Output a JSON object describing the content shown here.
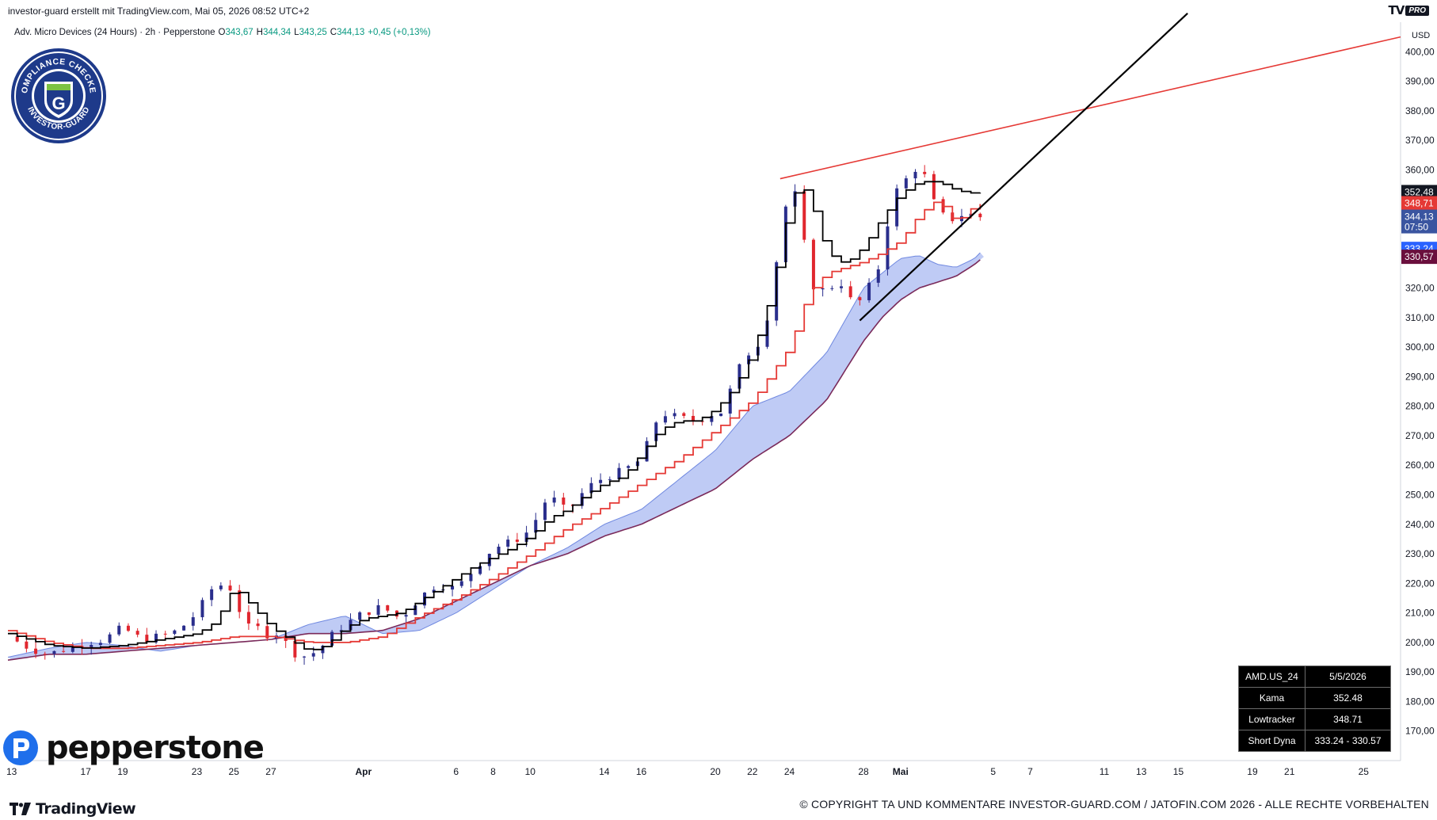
{
  "header": {
    "caption": "investor-guard erstellt mit TradingView.com, Mai 05, 2026 08:52 UTC+2",
    "pro_badge": "PRO"
  },
  "legend": {
    "symbol": "Adv. Micro Devices (24 Hours) · 2h · Pepperstone",
    "o_label": "O",
    "o": "343,67",
    "h_label": "H",
    "h": "344,34",
    "l_label": "L",
    "l": "343,25",
    "c_label": "C",
    "c": "344,13",
    "change": "+0,45 (+0,13%)"
  },
  "badge": {
    "top_text": "COMPLIANCE CHECKED",
    "bottom_text": "INVESTOR-GUARD",
    "letter": "G"
  },
  "stats": {
    "header_symbol": "AMD.US_24",
    "header_date": "5/5/2026",
    "rows": [
      {
        "label": "Kama",
        "value": "352.48"
      },
      {
        "label": "Lowtracker",
        "value": "348.71"
      },
      {
        "label": "Short Dyna",
        "value": "333.24 - 330.57"
      }
    ]
  },
  "footer": {
    "pepperstone": "pepperstone",
    "tradingview": "TradingView",
    "copyright": "© COPYRIGHT TA UND KOMMENTARE INVESTOR-GUARD.COM / JATOFIN.COM 2026 - ALLE RECHTE VORBEHALTEN"
  },
  "colors": {
    "up": "#2a2e8c",
    "down": "#e0262e",
    "kama": "#000000",
    "lowtracker": "#e53935",
    "cloud_fill": "#a9b9f2",
    "cloud_border": "#7a2a5a",
    "trend_red": "#e53935",
    "trend_black": "#000000"
  },
  "chart_data": {
    "type": "candlestick",
    "currency": "USD",
    "ylim": [
      160,
      410
    ],
    "y_ticks": [
      170,
      180,
      190,
      200,
      210,
      220,
      230,
      240,
      250,
      260,
      270,
      280,
      290,
      300,
      310,
      320,
      330,
      340,
      350,
      360,
      370,
      380,
      390,
      400
    ],
    "y_tick_labels": [
      "170,00",
      "180,00",
      "190,00",
      "200,00",
      "210,00",
      "220,00",
      "230,00",
      "240,00",
      "250,00",
      "260,00",
      "270,00",
      "280,00",
      "290,00",
      "300,00",
      "310,00",
      "320,00",
      "330,00",
      "340,00",
      "350,00",
      "360,00",
      "370,00",
      "380,00",
      "390,00",
      "400,00"
    ],
    "x_labels": [
      "13",
      "17",
      "19",
      "23",
      "25",
      "27",
      "Apr",
      "6",
      "8",
      "10",
      "14",
      "16",
      "20",
      "22",
      "24",
      "28",
      "Mai",
      "5",
      "7",
      "11",
      "13",
      "15",
      "19",
      "21",
      "25"
    ],
    "x_label_days": [
      13,
      17,
      19,
      23,
      25,
      27,
      32,
      37,
      39,
      41,
      45,
      47,
      51,
      53,
      55,
      59,
      61,
      66,
      68,
      72,
      74,
      76,
      80,
      82,
      86
    ],
    "x_range_days": [
      12.8,
      88
    ],
    "price_labels": [
      {
        "name": "Kama",
        "value": 352.48,
        "text": "352,48",
        "color": "#131722"
      },
      {
        "name": "Lowtracker",
        "value": 348.71,
        "text": "348,71",
        "color": "#e53935"
      },
      {
        "name": "Last",
        "value": 344.13,
        "text": "344,13",
        "sub": "07:50",
        "color": "#3a55a0"
      },
      {
        "name": "Short Dyna upper",
        "value": 333.24,
        "text": "333,24",
        "color": "#2962ff"
      },
      {
        "name": "Short Dyna lower",
        "value": 330.57,
        "text": "330,57",
        "color": "#6a0f3d"
      }
    ],
    "series": [
      {
        "name": "Close",
        "x": [
          12.8,
          14,
          15,
          16,
          17,
          18,
          19,
          20,
          21,
          22,
          23,
          24,
          25,
          25.6,
          26,
          27,
          27.5,
          28,
          29,
          30,
          30.5,
          31,
          32,
          33,
          34,
          35,
          36,
          37,
          38,
          39,
          40,
          41,
          42,
          43,
          44,
          45,
          46,
          47,
          48,
          49,
          50,
          51,
          51.5,
          52,
          53,
          53.5,
          54,
          54.5,
          55,
          55.5,
          56,
          56.5,
          57,
          58,
          58.5,
          59,
          59.5,
          60,
          60.5,
          61,
          61.5,
          62,
          62.5,
          63,
          64,
          64.5,
          65,
          65.5
        ],
        "values": [
          202,
          198,
          196,
          198,
          200,
          201,
          205,
          201,
          202,
          204,
          210,
          220,
          218,
          204,
          206,
          202,
          204,
          197,
          195,
          200,
          204,
          206,
          210,
          212,
          208,
          215,
          220,
          218,
          225,
          232,
          234,
          238,
          250,
          244,
          252,
          256,
          258,
          262,
          278,
          276,
          275,
          278,
          278,
          290,
          300,
          302,
          316,
          338,
          354,
          350,
          325,
          318,
          320,
          322,
          312,
          318,
          322,
          330,
          350,
          355,
          358,
          362,
          355,
          345,
          343,
          346,
          344,
          344.13
        ]
      },
      {
        "name": "Kama",
        "x": [
          12.8,
          15,
          17,
          19,
          21,
          23,
          24,
          25,
          26,
          27,
          28,
          29,
          30,
          31,
          32,
          33,
          34,
          35,
          36,
          37,
          38,
          39,
          40,
          41,
          42,
          43,
          44,
          45,
          46,
          47,
          48,
          49,
          50,
          51,
          52,
          53,
          54,
          55,
          55.5,
          56,
          57,
          58,
          59,
          60,
          61,
          62,
          63,
          64,
          65,
          65.5
        ],
        "values": [
          203,
          199,
          198,
          199,
          201,
          203,
          207,
          219,
          212,
          205,
          201,
          197,
          199,
          205,
          208,
          209,
          210,
          214,
          218,
          222,
          226,
          229,
          232,
          236,
          242,
          245,
          250,
          254,
          256,
          264,
          272,
          275,
          275,
          279,
          286,
          298,
          318,
          348,
          355,
          352,
          332,
          328,
          334,
          344,
          352,
          356,
          356,
          353,
          352,
          352.48
        ]
      },
      {
        "name": "Lowtracker",
        "x": [
          12.8,
          15,
          17,
          19,
          21,
          23,
          25,
          27,
          29,
          31,
          33,
          35,
          37,
          39,
          41,
          43,
          45,
          47,
          49,
          51,
          53,
          55,
          56,
          57,
          58,
          59,
          60,
          61,
          62,
          63,
          64,
          65,
          65.5
        ],
        "values": [
          204,
          200,
          198,
          198,
          199,
          200,
          202,
          202,
          200,
          200,
          202,
          209,
          215,
          222,
          230,
          239,
          246,
          254,
          262,
          272,
          282,
          300,
          318,
          325,
          327,
          329,
          332,
          336,
          345,
          350,
          342,
          348,
          348.71
        ]
      },
      {
        "name": "Short Dyna upper",
        "x": [
          12.8,
          15,
          17,
          19,
          21,
          23,
          25,
          27,
          29,
          31,
          33,
          35,
          37,
          39,
          41,
          43,
          45,
          47,
          49,
          51,
          53,
          55,
          57,
          59,
          60,
          61,
          62,
          63,
          64,
          65,
          65.5
        ],
        "values": [
          195,
          198,
          200,
          199,
          197,
          199,
          200,
          201,
          206,
          209,
          203,
          204,
          210,
          218,
          226,
          232,
          240,
          245,
          255,
          265,
          280,
          285,
          298,
          320,
          325,
          330,
          331,
          328,
          327,
          330,
          333.24
        ]
      },
      {
        "name": "Short Dyna lower",
        "x": [
          12.8,
          15,
          17,
          19,
          21,
          23,
          25,
          27,
          29,
          31,
          33,
          35,
          37,
          39,
          41,
          43,
          45,
          47,
          49,
          51,
          53,
          55,
          57,
          59,
          60,
          61,
          62,
          63,
          64,
          65,
          65.5
        ],
        "values": [
          194,
          196,
          196,
          197,
          198,
          199,
          200,
          201,
          203,
          203,
          204,
          208,
          214,
          220,
          226,
          230,
          236,
          240,
          246,
          252,
          262,
          270,
          282,
          302,
          310,
          316,
          320,
          322,
          324,
          328,
          330.57
        ]
      }
    ],
    "trend_lines": [
      {
        "name": "red resistance",
        "x": [
          54.5,
          88
        ],
        "values": [
          357,
          405
        ]
      },
      {
        "name": "black support",
        "x": [
          58.8,
          76.5
        ],
        "values": [
          309,
          413
        ]
      }
    ]
  }
}
